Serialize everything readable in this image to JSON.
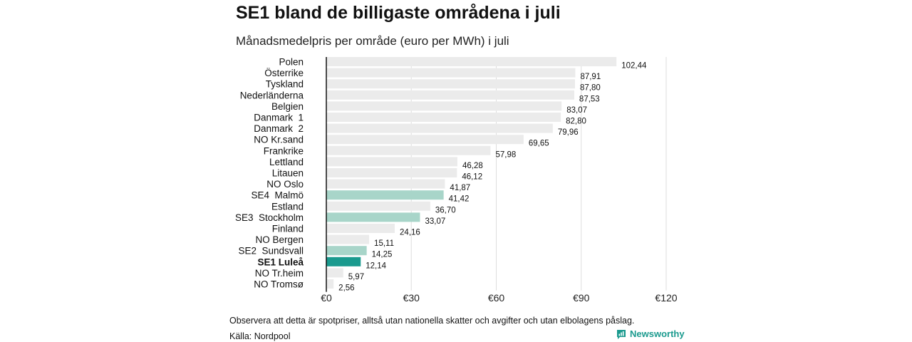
{
  "title": "SE1 bland de billigaste områdena i juli",
  "subtitle": "Månadsmedelpris per område (euro per MWh) i juli",
  "footer": {
    "note": "Observera att detta är spotpriser, alltså utan nationella skatter och avgifter och utan elbolagens påslag.",
    "source": "Källa: Nordpool",
    "brand": "Newsworthy",
    "brand_color": "#1a9a8e"
  },
  "colors": {
    "default_bar": "#ebebeb",
    "se_bar": "#a8d5c9",
    "se1_bar": "#1a9a8e",
    "grid": "#dddddd",
    "axis": "#111111"
  },
  "chart_data": {
    "type": "bar",
    "orientation": "horizontal",
    "unit": "euro per MWh",
    "xlim": [
      0,
      120
    ],
    "xticks": [
      0,
      30,
      60,
      90,
      120
    ],
    "xtick_labels": [
      "€0",
      "€30",
      "€60",
      "€90",
      "€120"
    ],
    "grid": true,
    "categories": [
      "Polen",
      "Österrike",
      "Tyskland",
      "Nederländerna",
      "Belgien",
      "Danmark  1",
      "Danmark  2",
      "NO Kr.sand",
      "Frankrike",
      "Lettland",
      "Litauen",
      "NO Oslo",
      "SE4  Malmö",
      "Estland",
      "SE3  Stockholm",
      "Finland",
      "NO Bergen",
      "SE2  Sundsvall",
      "SE1 Luleå",
      "NO Tr.heim",
      "NO Tromsø"
    ],
    "values": [
      102.44,
      87.91,
      87.8,
      87.53,
      83.07,
      82.8,
      79.96,
      69.65,
      57.98,
      46.28,
      46.12,
      41.87,
      41.42,
      36.7,
      33.07,
      24.16,
      15.11,
      14.25,
      12.14,
      5.97,
      2.56
    ],
    "value_labels": [
      "102,44",
      "87,91",
      "87,80",
      "87,53",
      "83,07",
      "82,80",
      "79,96",
      "69,65",
      "57,98",
      "46,28",
      "46,12",
      "41,87",
      "41,42",
      "36,70",
      "33,07",
      "24,16",
      "15,11",
      "14,25",
      "12,14",
      "5,97",
      "2,56"
    ],
    "highlight": {
      "SE4  Malmö": "se",
      "SE3  Stockholm": "se",
      "SE2  Sundsvall": "se",
      "SE1 Luleå": "se1"
    },
    "bold_categories": [
      "SE1 Luleå"
    ]
  }
}
